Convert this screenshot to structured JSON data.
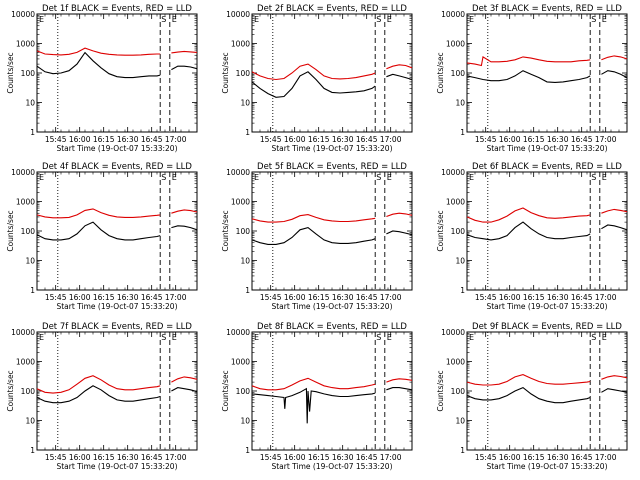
{
  "colors": {
    "events": "#000000",
    "lld": "#dd0000",
    "axis": "#000000",
    "background": "#ffffff"
  },
  "shared": {
    "xlabel": "Start Time (19-Oct-07 15:33:20)",
    "ylabel": "Counts/sec",
    "y_ticks": [
      1,
      10,
      100,
      1000,
      10000
    ],
    "y_tick_labels": [
      "1",
      "10",
      "100",
      "1000",
      "10000"
    ],
    "ylim": [
      1,
      10000
    ],
    "x_tick_labels": [
      "15:45",
      "16:00",
      "16:15",
      "16:30",
      "16:45",
      "17:00"
    ],
    "x_ticks_min": [
      11.67,
      26.67,
      41.67,
      56.67,
      71.67,
      86.67
    ],
    "xlim_min": [
      0,
      100
    ],
    "markers": {
      "S": "S",
      "E": "E"
    },
    "vlines": {
      "dotted_start_min": 13,
      "dashed_min": [
        77,
        83
      ]
    }
  },
  "chart_data": [
    {
      "type": "line",
      "title": "Det 1f BLACK = Events, RED = LLD",
      "series": [
        {
          "name": "Events",
          "x": [
            0,
            5,
            10,
            15,
            20,
            25,
            30,
            35,
            40,
            45,
            50,
            55,
            60,
            65,
            70,
            75,
            77
          ],
          "values": [
            170,
            110,
            95,
            100,
            120,
            200,
            490,
            260,
            150,
            95,
            75,
            70,
            70,
            75,
            80,
            80,
            85
          ]
        },
        {
          "name": "LLD",
          "x": [
            0,
            5,
            10,
            15,
            20,
            25,
            30,
            35,
            40,
            45,
            50,
            55,
            60,
            65,
            70,
            75,
            77
          ],
          "values": [
            560,
            440,
            420,
            410,
            430,
            500,
            700,
            560,
            470,
            430,
            410,
            400,
            400,
            410,
            430,
            440,
            440
          ]
        },
        {
          "name": "Events",
          "x": [
            84,
            88,
            92,
            96,
            100
          ],
          "values": [
            130,
            170,
            170,
            160,
            140
          ]
        },
        {
          "name": "LLD",
          "x": [
            84,
            88,
            92,
            96,
            100
          ],
          "values": [
            480,
            510,
            540,
            520,
            500
          ]
        }
      ]
    },
    {
      "type": "line",
      "title": "Det 2f BLACK = Events, RED = LLD",
      "series": [
        {
          "name": "Events",
          "x": [
            0,
            5,
            10,
            15,
            20,
            25,
            30,
            35,
            40,
            45,
            50,
            55,
            60,
            65,
            70,
            75,
            77
          ],
          "values": [
            50,
            30,
            20,
            15,
            16,
            30,
            80,
            110,
            60,
            30,
            22,
            21,
            22,
            23,
            25,
            30,
            36
          ]
        },
        {
          "name": "LLD",
          "x": [
            0,
            5,
            10,
            15,
            20,
            25,
            30,
            35,
            40,
            45,
            50,
            55,
            60,
            65,
            70,
            75,
            77
          ],
          "values": [
            110,
            80,
            65,
            60,
            65,
            100,
            170,
            200,
            130,
            80,
            65,
            63,
            65,
            70,
            80,
            90,
            100
          ]
        },
        {
          "name": "Events",
          "x": [
            84,
            88,
            92,
            96,
            100
          ],
          "values": [
            75,
            90,
            80,
            70,
            60
          ]
        },
        {
          "name": "LLD",
          "x": [
            84,
            88,
            92,
            96,
            100
          ],
          "values": [
            140,
            170,
            190,
            180,
            150
          ]
        }
      ]
    },
    {
      "type": "line",
      "title": "Det 3f BLACK = Events, RED = LLD",
      "series": [
        {
          "name": "Events",
          "x": [
            0,
            5,
            10,
            15,
            20,
            25,
            30,
            35,
            40,
            45,
            50,
            55,
            60,
            65,
            70,
            75,
            77
          ],
          "values": [
            80,
            70,
            60,
            55,
            55,
            60,
            80,
            120,
            90,
            70,
            50,
            48,
            50,
            55,
            60,
            70,
            80
          ]
        },
        {
          "name": "LLD",
          "x": [
            0,
            5,
            9,
            10,
            15,
            20,
            25,
            30,
            35,
            40,
            45,
            50,
            55,
            60,
            65,
            70,
            75,
            77
          ],
          "values": [
            220,
            200,
            180,
            350,
            240,
            240,
            250,
            280,
            350,
            320,
            280,
            250,
            240,
            240,
            240,
            260,
            270,
            280
          ]
        },
        {
          "name": "Events",
          "x": [
            84,
            88,
            92,
            96,
            100
          ],
          "values": [
            90,
            120,
            110,
            90,
            70
          ]
        },
        {
          "name": "LLD",
          "x": [
            84,
            88,
            92,
            96,
            100
          ],
          "values": [
            280,
            340,
            380,
            350,
            300
          ]
        }
      ]
    },
    {
      "type": "line",
      "title": "Det 4f BLACK = Events, RED = LLD",
      "series": [
        {
          "name": "Events",
          "x": [
            0,
            5,
            10,
            15,
            20,
            25,
            30,
            35,
            40,
            45,
            50,
            55,
            60,
            65,
            70,
            75,
            77
          ],
          "values": [
            75,
            55,
            50,
            50,
            55,
            80,
            150,
            200,
            110,
            70,
            55,
            50,
            50,
            55,
            60,
            65,
            70
          ]
        },
        {
          "name": "LLD",
          "x": [
            0,
            5,
            10,
            15,
            20,
            25,
            30,
            35,
            40,
            45,
            50,
            55,
            60,
            65,
            70,
            75,
            77
          ],
          "values": [
            350,
            300,
            280,
            280,
            290,
            350,
            500,
            560,
            420,
            340,
            300,
            290,
            290,
            300,
            320,
            340,
            350
          ]
        },
        {
          "name": "Events",
          "x": [
            84,
            88,
            92,
            96,
            100
          ],
          "values": [
            130,
            150,
            145,
            130,
            110
          ]
        },
        {
          "name": "LLD",
          "x": [
            84,
            88,
            92,
            96,
            100
          ],
          "values": [
            400,
            470,
            520,
            490,
            440
          ]
        }
      ]
    },
    {
      "type": "line",
      "title": "Det 5f BLACK = Events, RED = LLD",
      "series": [
        {
          "name": "Events",
          "x": [
            0,
            5,
            10,
            15,
            20,
            25,
            30,
            35,
            40,
            45,
            50,
            55,
            60,
            65,
            70,
            75,
            77
          ],
          "values": [
            50,
            40,
            35,
            35,
            40,
            60,
            110,
            130,
            80,
            50,
            40,
            38,
            38,
            40,
            45,
            50,
            55
          ]
        },
        {
          "name": "LLD",
          "x": [
            0,
            5,
            10,
            15,
            20,
            25,
            30,
            35,
            40,
            45,
            50,
            55,
            60,
            65,
            70,
            75,
            77
          ],
          "values": [
            260,
            220,
            200,
            200,
            210,
            250,
            330,
            360,
            290,
            240,
            220,
            210,
            210,
            220,
            240,
            260,
            270
          ]
        },
        {
          "name": "Events",
          "x": [
            84,
            88,
            92,
            96,
            100
          ],
          "values": [
            80,
            100,
            95,
            85,
            75
          ]
        },
        {
          "name": "LLD",
          "x": [
            84,
            88,
            92,
            96,
            100
          ],
          "values": [
            310,
            370,
            400,
            380,
            340
          ]
        }
      ]
    },
    {
      "type": "line",
      "title": "Det 6f BLACK = Events, RED = LLD",
      "series": [
        {
          "name": "Events",
          "x": [
            0,
            5,
            10,
            15,
            20,
            25,
            30,
            35,
            40,
            45,
            50,
            55,
            60,
            65,
            70,
            75,
            77
          ],
          "values": [
            75,
            60,
            55,
            50,
            55,
            70,
            130,
            200,
            120,
            80,
            60,
            55,
            55,
            60,
            65,
            70,
            80
          ]
        },
        {
          "name": "LLD",
          "x": [
            0,
            5,
            10,
            15,
            20,
            25,
            30,
            35,
            40,
            45,
            50,
            55,
            60,
            65,
            70,
            75,
            77
          ],
          "values": [
            300,
            230,
            200,
            200,
            240,
            320,
            480,
            600,
            420,
            330,
            280,
            270,
            280,
            300,
            320,
            330,
            350
          ]
        },
        {
          "name": "Events",
          "x": [
            84,
            88,
            92,
            96,
            100
          ],
          "values": [
            120,
            160,
            150,
            130,
            110
          ]
        },
        {
          "name": "LLD",
          "x": [
            84,
            88,
            92,
            96,
            100
          ],
          "values": [
            400,
            480,
            540,
            500,
            450
          ]
        }
      ]
    },
    {
      "type": "line",
      "title": "Det 7f BLACK = Events, RED = LLD",
      "series": [
        {
          "name": "Events",
          "x": [
            0,
            5,
            10,
            15,
            20,
            25,
            30,
            35,
            40,
            45,
            50,
            55,
            60,
            65,
            70,
            75,
            77
          ],
          "values": [
            60,
            45,
            40,
            40,
            45,
            60,
            100,
            150,
            110,
            70,
            50,
            45,
            45,
            50,
            55,
            60,
            65
          ]
        },
        {
          "name": "LLD",
          "x": [
            0,
            5,
            10,
            15,
            20,
            25,
            30,
            35,
            40,
            45,
            50,
            55,
            60,
            65,
            70,
            75,
            77
          ],
          "values": [
            120,
            90,
            85,
            90,
            110,
            170,
            270,
            330,
            240,
            160,
            120,
            110,
            110,
            120,
            130,
            140,
            150
          ]
        },
        {
          "name": "Events",
          "x": [
            84,
            88,
            92,
            96,
            100
          ],
          "values": [
            100,
            130,
            120,
            110,
            95
          ]
        },
        {
          "name": "LLD",
          "x": [
            84,
            88,
            92,
            96,
            100
          ],
          "values": [
            200,
            260,
            300,
            280,
            250
          ]
        }
      ]
    },
    {
      "type": "line",
      "title": "Det 8f BLACK = Events, RED = LLD",
      "series": [
        {
          "name": "Events",
          "x": [
            0,
            5,
            10,
            15,
            20,
            20.5,
            21,
            25,
            30,
            34,
            34.5,
            35,
            36,
            37,
            40,
            45,
            50,
            55,
            60,
            65,
            70,
            75,
            77
          ],
          "values": [
            80,
            75,
            70,
            65,
            60,
            25,
            60,
            70,
            90,
            120,
            8,
            100,
            20,
            100,
            95,
            80,
            70,
            65,
            65,
            70,
            75,
            80,
            85
          ]
        },
        {
          "name": "LLD",
          "x": [
            0,
            5,
            10,
            15,
            20,
            25,
            30,
            35,
            40,
            45,
            50,
            55,
            60,
            65,
            70,
            75,
            77
          ],
          "values": [
            150,
            120,
            110,
            110,
            120,
            160,
            220,
            270,
            200,
            150,
            130,
            120,
            120,
            130,
            140,
            160,
            170
          ]
        },
        {
          "name": "Events",
          "x": [
            84,
            88,
            92,
            96,
            100
          ],
          "values": [
            110,
            130,
            130,
            120,
            110
          ]
        },
        {
          "name": "LLD",
          "x": [
            84,
            88,
            92,
            96,
            100
          ],
          "values": [
            200,
            240,
            260,
            250,
            230
          ]
        }
      ]
    },
    {
      "type": "line",
      "title": "Det 9f BLACK = Events, RED = LLD",
      "series": [
        {
          "name": "Events",
          "x": [
            0,
            5,
            10,
            15,
            20,
            25,
            30,
            35,
            40,
            45,
            50,
            55,
            60,
            65,
            70,
            75,
            77
          ],
          "values": [
            70,
            55,
            50,
            50,
            55,
            70,
            100,
            130,
            80,
            55,
            45,
            40,
            40,
            45,
            50,
            55,
            60
          ]
        },
        {
          "name": "LLD",
          "x": [
            0,
            5,
            10,
            15,
            20,
            25,
            30,
            35,
            40,
            45,
            50,
            55,
            60,
            65,
            70,
            75,
            77
          ],
          "values": [
            200,
            170,
            160,
            160,
            170,
            210,
            300,
            360,
            270,
            210,
            180,
            170,
            170,
            180,
            190,
            200,
            210
          ]
        },
        {
          "name": "Events",
          "x": [
            84,
            88,
            92,
            96,
            100
          ],
          "values": [
            90,
            120,
            110,
            100,
            90
          ]
        },
        {
          "name": "LLD",
          "x": [
            84,
            88,
            92,
            96,
            100
          ],
          "values": [
            250,
            300,
            330,
            310,
            280
          ]
        }
      ]
    }
  ]
}
